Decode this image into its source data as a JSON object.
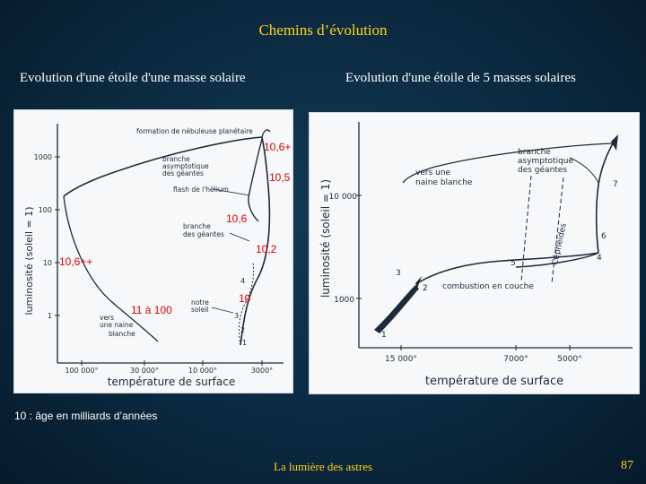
{
  "title": "Chemins d’évolution",
  "subtitles": {
    "left": "Evolution d'une étoile d'une masse solaire",
    "right": "Evolution d'une étoile de 5 masses solaires"
  },
  "left_diagram": {
    "ylabel": "luminosité   (soleil = 1)",
    "xlabel": "température  de  surface",
    "y_ticks": [
      "1000",
      "100",
      "10",
      "1"
    ],
    "x_ticks": [
      "100 000°",
      "30 000°",
      "10 000°",
      "3000°"
    ],
    "labels": {
      "nebula": "formation de nébuleuse planétaire",
      "agb": [
        "branche",
        "asymptotique",
        "des géantes"
      ],
      "flash": "flash de l'hélium",
      "rgb": [
        "branche",
        "des géantes"
      ],
      "sun": [
        "notre",
        "soleil"
      ],
      "wd": [
        "vers",
        "une naine",
        "blanche"
      ]
    },
    "stage_numbers": [
      "1",
      "2",
      "3",
      "4"
    ],
    "age_annotations": [
      "10,6+",
      "10,5",
      "10,6",
      "10,2",
      "10,6++",
      "11 à 100",
      "10"
    ]
  },
  "right_diagram": {
    "ylabel": "luminosité   (soleil = 1)",
    "xlabel": "température  de  surface",
    "y_ticks": [
      "10 000",
      "1000"
    ],
    "x_ticks": [
      "15 000°",
      "7000°",
      "5000°"
    ],
    "labels": {
      "agb": [
        "branche",
        "asymptotique",
        "des géantes"
      ],
      "wd": [
        "vers  une",
        "naine  blanche"
      ],
      "cepheids": "Céphéides",
      "core_burning": "combustion  en  couche"
    },
    "stage_numbers": [
      "1",
      "2",
      "3",
      "4",
      "5",
      "6",
      "7"
    ]
  },
  "footnote": "10 :  âge en milliards d’années",
  "footer": "La lumière des astres",
  "page_number": "87",
  "colors": {
    "background": "#0b2a40",
    "title": "#ffd21a",
    "annotation": "#e00000",
    "panel": "#f7f8fa",
    "ink": "#1c2a3a"
  }
}
